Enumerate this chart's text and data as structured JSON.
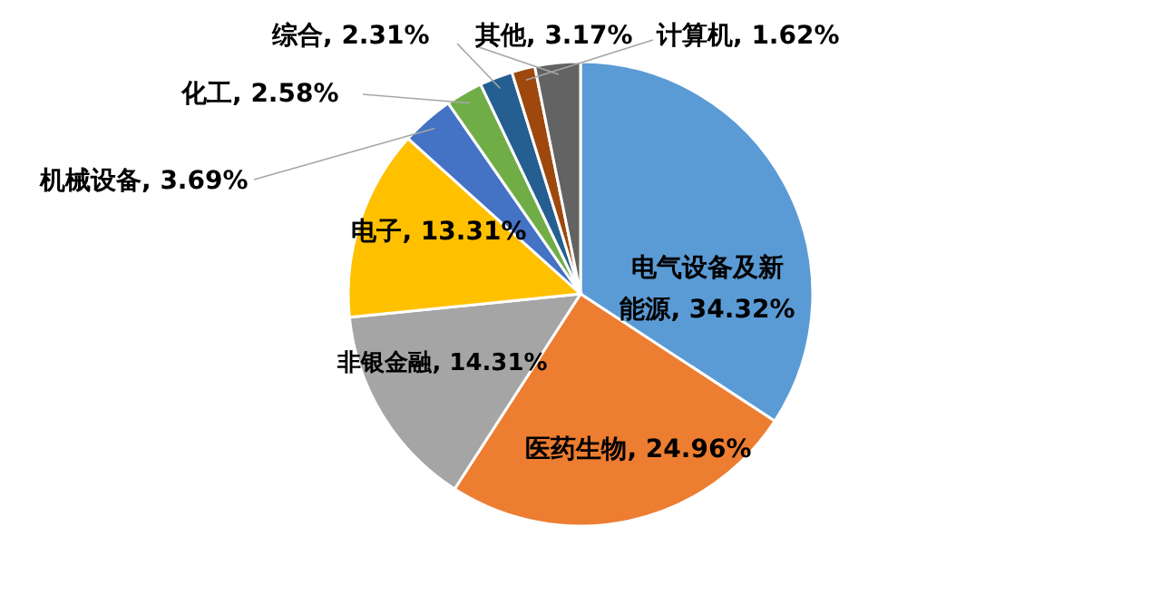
{
  "chart_data": {
    "type": "pie",
    "categories": [
      "电气设备及新能源",
      "医药生物",
      "非银金融",
      "电子",
      "机械设备",
      "化工",
      "综合",
      "计算机",
      "其他"
    ],
    "values": [
      34.32,
      24.96,
      14.31,
      13.31,
      3.69,
      2.58,
      2.31,
      1.62,
      3.17
    ],
    "value_labels": [
      "34.32%",
      "24.96%",
      "14.31%",
      "13.31%",
      "3.69%",
      "2.58%",
      "2.31%",
      "1.62%",
      "3.17%"
    ],
    "colors": [
      "#5b9bd5",
      "#ed7d31",
      "#a5a5a5",
      "#ffc000",
      "#4472c4",
      "#70ad47",
      "#255e91",
      "#9e480e",
      "#636363"
    ]
  }
}
